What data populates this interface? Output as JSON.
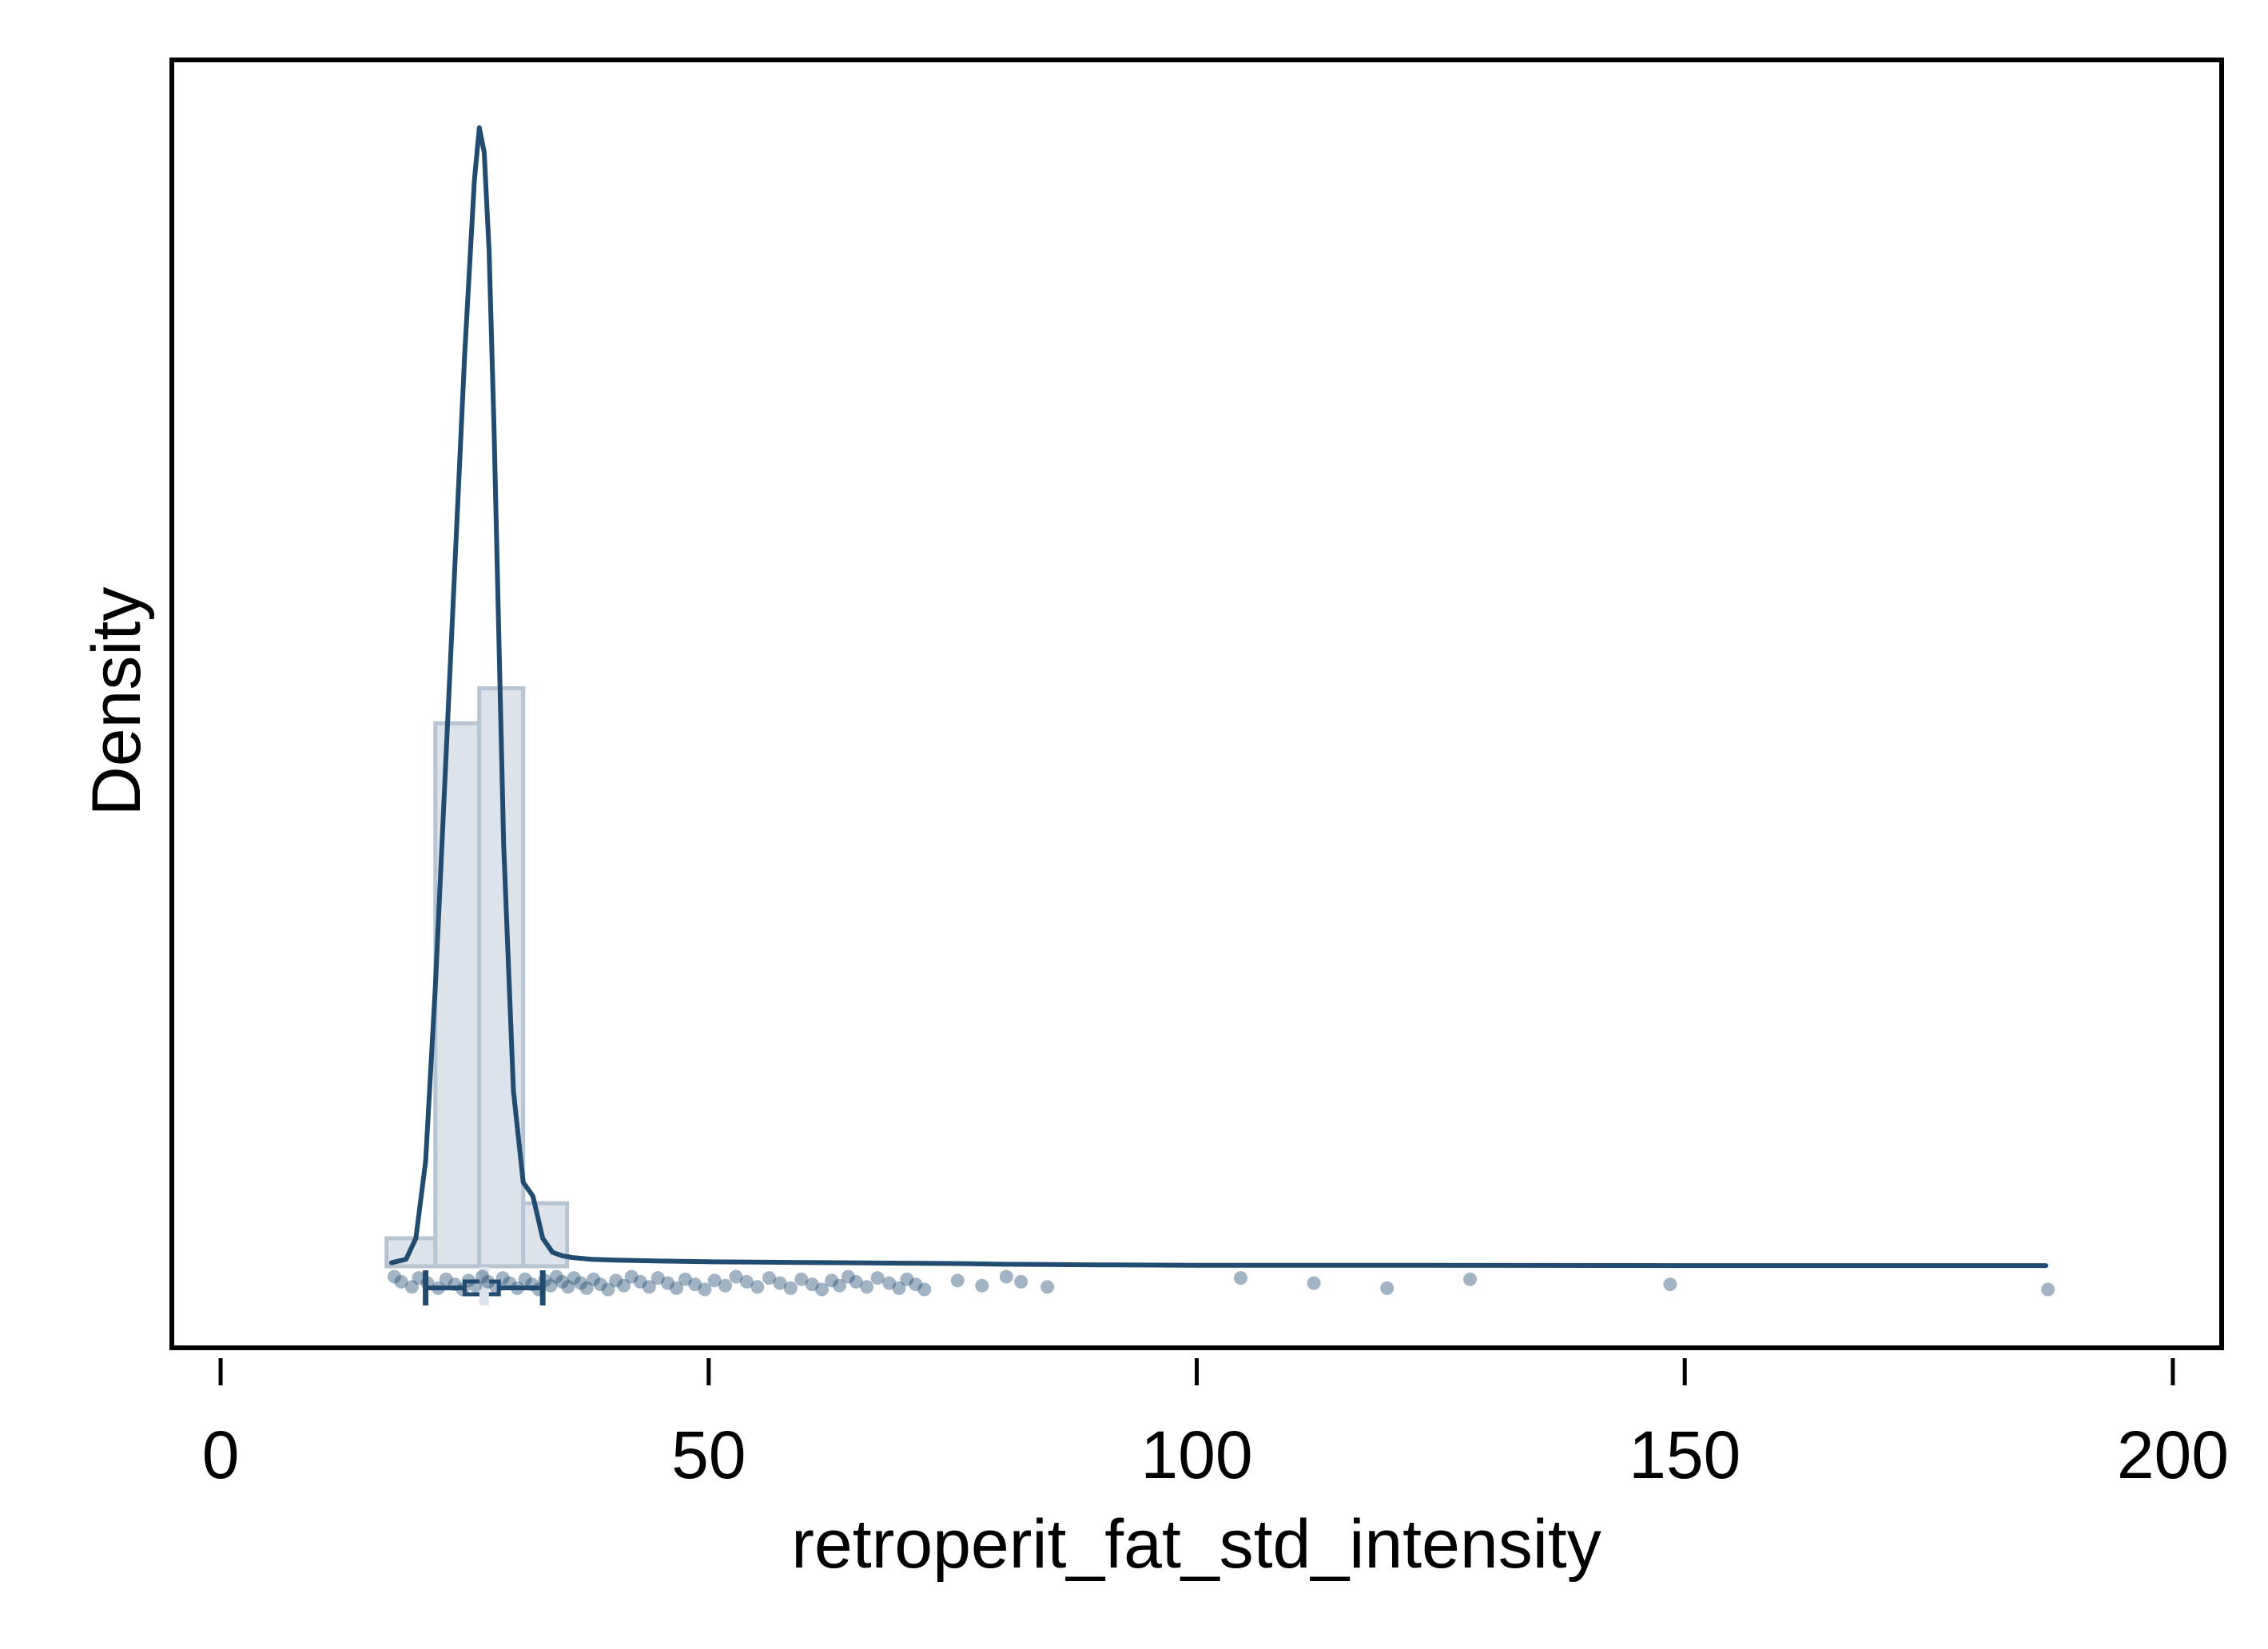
{
  "chart_data": {
    "type": "histogram",
    "xlabel": "retroperit_fat_std_intensity",
    "ylabel": "Density",
    "xlim": [
      -5,
      205
    ],
    "xticks": [
      0,
      50,
      100,
      150,
      200
    ],
    "y_tick_labels_shown": false,
    "grid": false,
    "legend": "none",
    "colors": {
      "hist_fill": "#dce3ea",
      "hist_stroke": "#b7c4d1",
      "kde_line": "#224b70",
      "points": "#224b70",
      "frame": "#000000"
    },
    "histogram": {
      "bin_edges": [
        17,
        22,
        26.5,
        31,
        35.5
      ],
      "heights": [
        0.008,
        0.155,
        0.165,
        0.018
      ],
      "ymax": 0.33
    },
    "kde": {
      "x": [
        17.5,
        19,
        20,
        21,
        22,
        23,
        24,
        25,
        26,
        26.5,
        27,
        27.5,
        28,
        28.5,
        29,
        30,
        31,
        32,
        33,
        34,
        35,
        36,
        38,
        40,
        45,
        50,
        55,
        60,
        65,
        70,
        75,
        80,
        85,
        90,
        100,
        120,
        150,
        187
      ],
      "y": [
        0.001,
        0.002,
        0.008,
        0.03,
        0.08,
        0.14,
        0.2,
        0.26,
        0.31,
        0.325,
        0.318,
        0.29,
        0.24,
        0.18,
        0.12,
        0.05,
        0.024,
        0.02,
        0.008,
        0.004,
        0.003,
        0.0025,
        0.002,
        0.0018,
        0.0015,
        0.0013,
        0.0012,
        0.0011,
        0.001,
        0.0009,
        0.0008,
        0.0006,
        0.0005,
        0.0004,
        0.0003,
        0.0003,
        0.0002,
        0.0002
      ]
    },
    "boxplot": {
      "whisker_low": 21,
      "q1": 25,
      "median": 27,
      "q3": 28.5,
      "whisker_high": 33
    },
    "rug_points": [
      17.8,
      18.5,
      19.6,
      20.3,
      21.2,
      22.3,
      23.1,
      24,
      24.8,
      25.4,
      26.1,
      26.8,
      27.4,
      28.2,
      28.9,
      29.6,
      30.4,
      31.2,
      31.9,
      32.6,
      33.2,
      33.8,
      34.4,
      35,
      35.6,
      36.2,
      36.9,
      37.5,
      38.2,
      38.9,
      39.7,
      40.5,
      41.3,
      42.1,
      43,
      43.9,
      44.8,
      45.8,
      46.7,
      47.6,
      48.6,
      49.6,
      50.6,
      51.7,
      52.8,
      53.9,
      55,
      56.2,
      57.3,
      58.4,
      59.5,
      60.6,
      61.6,
      62.6,
      63.4,
      64.3,
      65.1,
      66.2,
      67.3,
      68.5,
      69.5,
      70.3,
      71.2,
      72.1,
      75.5,
      78,
      80.5,
      82,
      84.7,
      104.5,
      112,
      119.5,
      128,
      148.5,
      187.2
    ]
  }
}
